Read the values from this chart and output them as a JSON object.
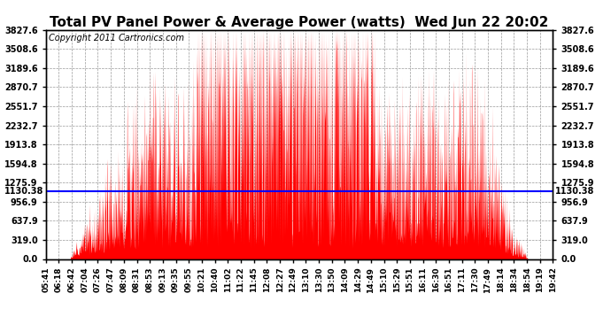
{
  "title": "Total PV Panel Power & Average Power (watts)  Wed Jun 22 20:02",
  "copyright": "Copyright 2011 Cartronics.com",
  "ymin": 0.0,
  "ymax": 3827.6,
  "yticks": [
    0.0,
    319.0,
    637.9,
    956.9,
    1275.9,
    1594.8,
    1913.8,
    2232.7,
    2551.7,
    2870.7,
    3189.6,
    3508.6,
    3827.6
  ],
  "ytick_labels": [
    "0.0",
    "319.0",
    "637.9",
    "956.9",
    "1275.9",
    "1594.8",
    "1913.8",
    "2232.7",
    "2551.7",
    "2870.7",
    "3189.6",
    "3508.6",
    "3827.6"
  ],
  "average_power": 1130.38,
  "fill_color": "#FF0000",
  "avg_line_color": "#0000FF",
  "background_color": "#FFFFFF",
  "title_fontsize": 11,
  "copyright_fontsize": 7,
  "avg_label": "1130.38",
  "xtick_labels": [
    "05:41",
    "06:18",
    "06:42",
    "07:04",
    "07:26",
    "07:47",
    "08:09",
    "08:31",
    "08:53",
    "09:13",
    "09:35",
    "09:55",
    "10:21",
    "10:40",
    "11:02",
    "11:22",
    "11:45",
    "12:08",
    "12:27",
    "12:49",
    "13:10",
    "13:30",
    "13:50",
    "14:09",
    "14:29",
    "14:49",
    "15:10",
    "15:29",
    "15:51",
    "16:11",
    "16:30",
    "16:51",
    "17:11",
    "17:30",
    "17:49",
    "18:14",
    "18:34",
    "18:54",
    "19:19",
    "19:42"
  ],
  "n_points": 2000,
  "seed": 42
}
